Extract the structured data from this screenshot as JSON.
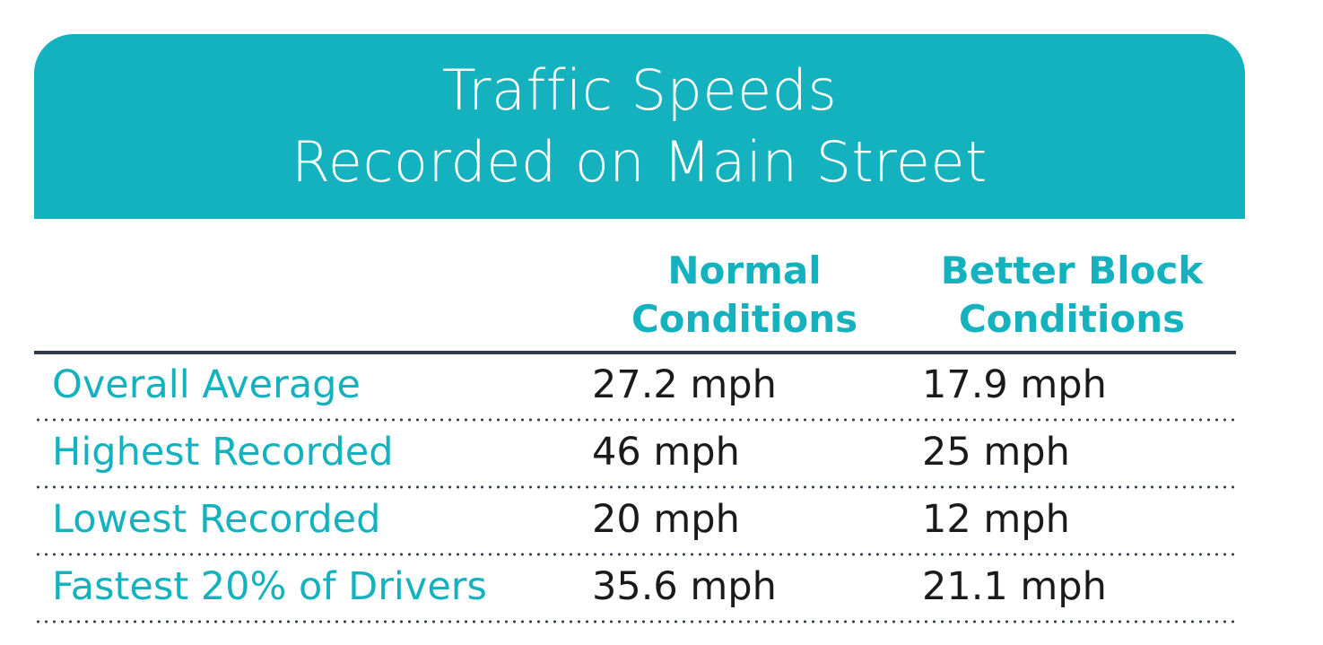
{
  "title": {
    "line1": "Traffic Speeds",
    "line2": "Recorded on Main Street"
  },
  "columns": {
    "normal": [
      "Normal",
      "Conditions"
    ],
    "better": [
      "Better Block",
      "Conditions"
    ]
  },
  "rows": [
    {
      "label": "Overall Average",
      "normal": "27.2 mph",
      "better": "17.9 mph"
    },
    {
      "label": "Highest Recorded",
      "normal": "46 mph",
      "better": "25 mph"
    },
    {
      "label": "Lowest Recorded",
      "normal": "20 mph",
      "better": "12 mph"
    },
    {
      "label": "Fastest 20% of Drivers",
      "normal": "35.6 mph",
      "better": "21.1 mph"
    }
  ],
  "colors": {
    "accent": "#14b1bf",
    "text": "#1a1a1a",
    "rule": "#333a47"
  }
}
